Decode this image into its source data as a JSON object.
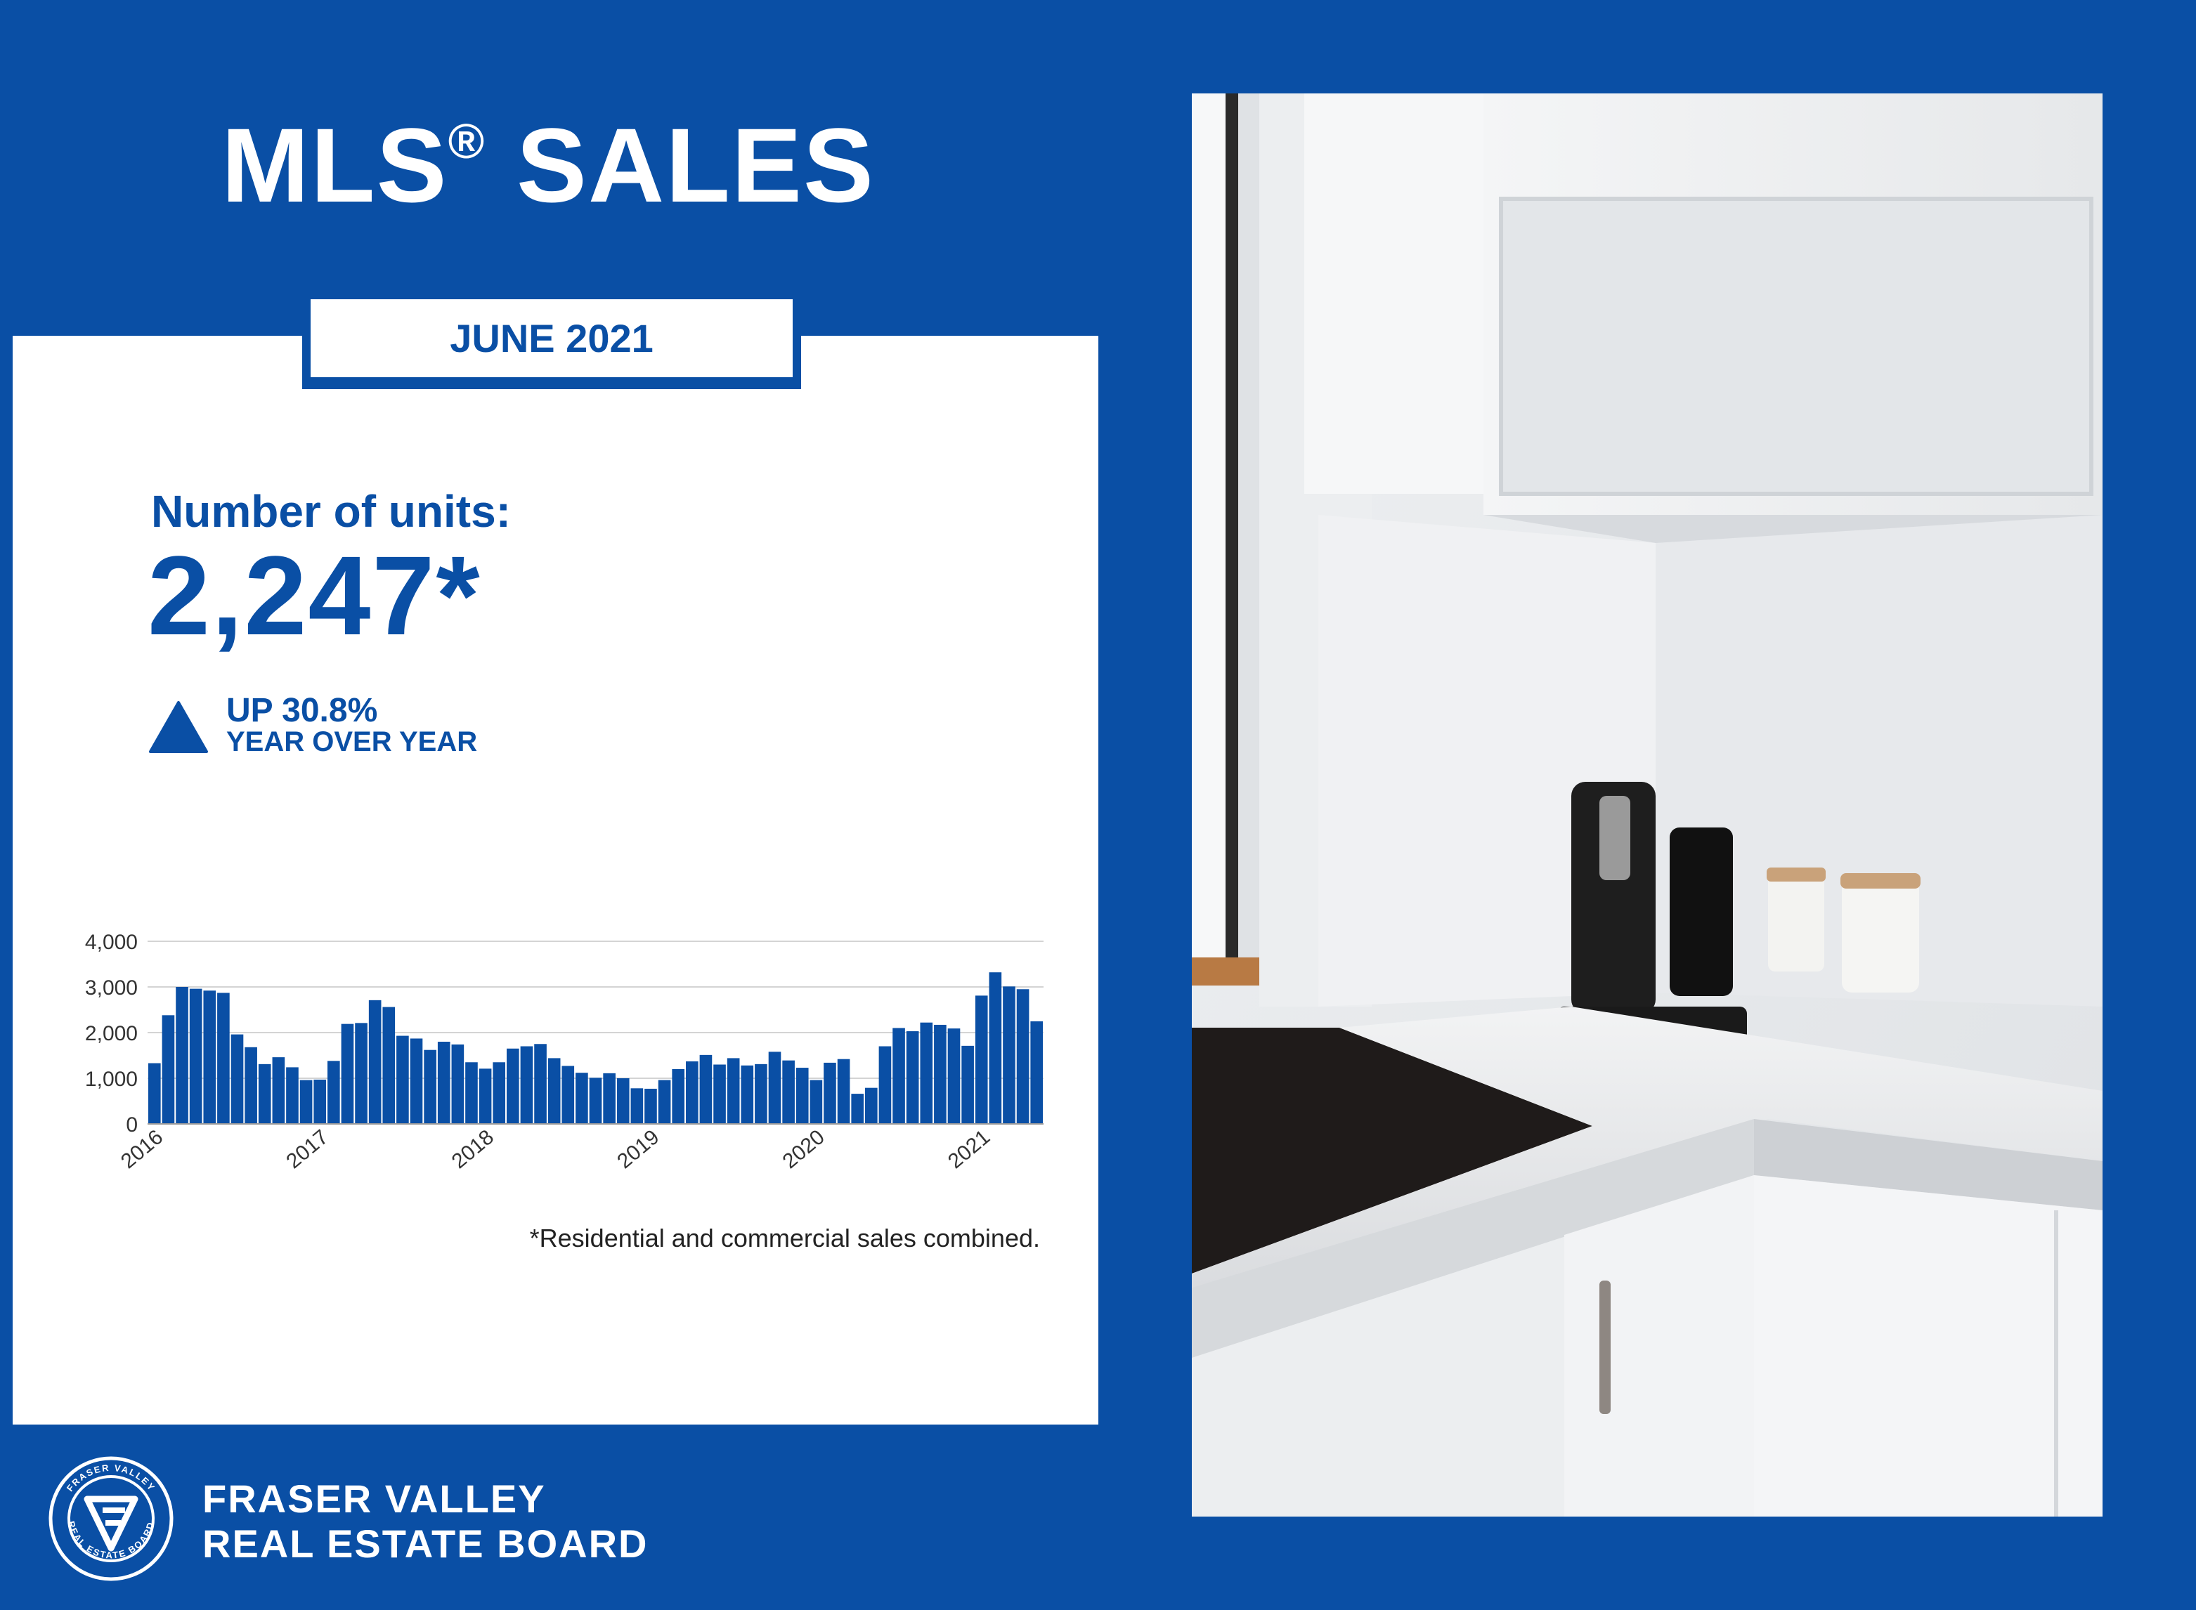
{
  "header": {
    "title": "MLS",
    "title_reg": "®",
    "title_suffix": "SALES",
    "period": "JUNE 2021"
  },
  "stats": {
    "units_label": "Number of units:",
    "units_value": "2,247*",
    "change_pct": "UP 30.8%",
    "change_label": "YEAR OVER YEAR"
  },
  "footnote": "*Residential and commercial sales combined.",
  "organization": {
    "line1": "FRASER VALLEY",
    "line2": "REAL ESTATE BOARD",
    "logo_ring_top": "FRASER VALLEY",
    "logo_ring_bottom": "REAL ESTATE BOARD"
  },
  "colors": {
    "brand_blue": "#0a4fa5",
    "bar_blue": "#0a4fa5",
    "white": "#ffffff"
  },
  "photo": {
    "subject": "white kitchen corner with coffee machine and canisters"
  },
  "chart_data": {
    "type": "bar",
    "title": "",
    "xlabel": "",
    "ylabel": "",
    "ylim": [
      0,
      4000
    ],
    "yticks": [
      0,
      1000,
      2000,
      3000,
      4000
    ],
    "ytick_labels": [
      "0",
      "1,000",
      "2,000",
      "3,000",
      "4,000"
    ],
    "xtick_labels": [
      "2016",
      "2017",
      "2018",
      "2019",
      "2020",
      "2021"
    ],
    "xtick_indices": [
      0,
      12,
      24,
      36,
      48,
      60
    ],
    "grid": true,
    "legend": "none",
    "series": [
      {
        "values": [
          1330,
          2380,
          3000,
          2960,
          2920,
          2870,
          1960,
          1680,
          1310,
          1460,
          1240,
          960,
          970,
          1380,
          2190,
          2210,
          2710,
          2560,
          1930,
          1870,
          1620,
          1800,
          1740,
          1350,
          1210,
          1350,
          1650,
          1700,
          1750,
          1440,
          1270,
          1120,
          1010,
          1110,
          1000,
          780,
          770,
          960,
          1200,
          1370,
          1510,
          1300,
          1440,
          1280,
          1310,
          1580,
          1390,
          1230,
          960,
          1340,
          1420,
          660,
          790,
          1700,
          2100,
          2030,
          2220,
          2170,
          2090,
          1710,
          2810,
          3320,
          3010,
          2950,
          2247
        ]
      }
    ]
  }
}
